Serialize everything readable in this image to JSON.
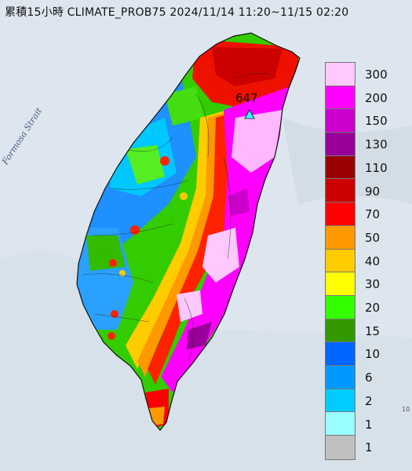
{
  "title": "累積15小時 CLIMATE_PROB75 2024/11/14 11:20~11/15 02:20",
  "strait_label": "Formosa Strait",
  "max_value": "647",
  "corner_mark": "10",
  "legend": [
    {
      "label": "300",
      "color": "#ffc8ff"
    },
    {
      "label": "200",
      "color": "#ff00ff"
    },
    {
      "label": "150",
      "color": "#cc00cc"
    },
    {
      "label": "130",
      "color": "#990099"
    },
    {
      "label": "110",
      "color": "#990000"
    },
    {
      "label": "90",
      "color": "#cc0000"
    },
    {
      "label": "70",
      "color": "#ff0000"
    },
    {
      "label": "50",
      "color": "#ff9900"
    },
    {
      "label": "40",
      "color": "#ffcc00"
    },
    {
      "label": "30",
      "color": "#ffff00"
    },
    {
      "label": "20",
      "color": "#33ff00"
    },
    {
      "label": "15",
      "color": "#339900"
    },
    {
      "label": "10",
      "color": "#0066ff"
    },
    {
      "label": "6",
      "color": "#0099ff"
    },
    {
      "label": "2",
      "color": "#00ccff"
    },
    {
      "label": "1",
      "color": "#99ffff"
    },
    {
      "label": "",
      "color": "#c0c0c0"
    }
  ],
  "legend_labels": [
    "300",
    "200",
    "150",
    "130",
    "110",
    "90",
    "70",
    "50",
    "40",
    "30",
    "20",
    "15",
    "10",
    "6",
    "2",
    "1",
    "1"
  ]
}
